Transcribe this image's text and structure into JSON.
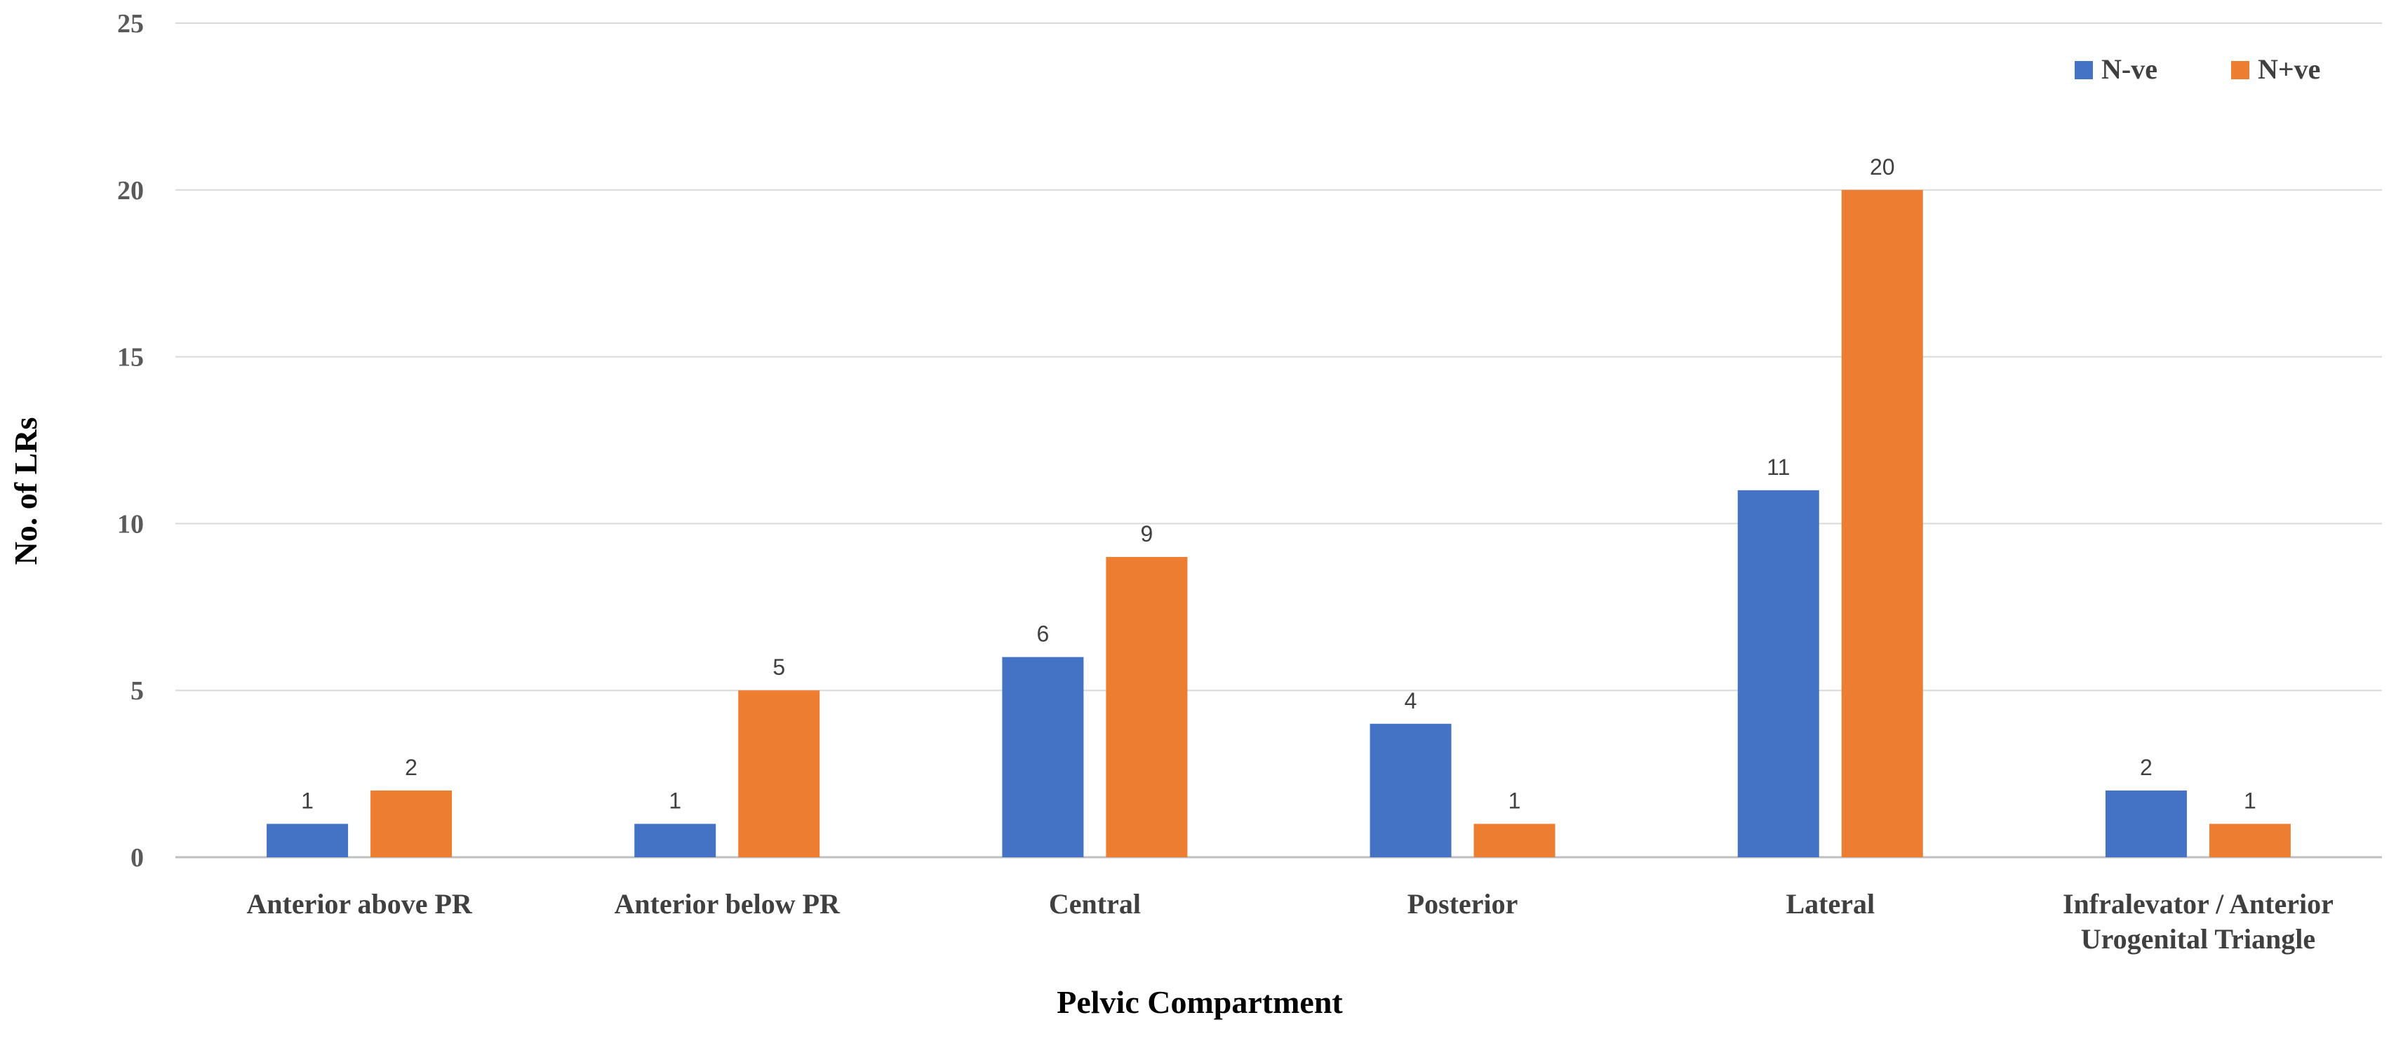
{
  "chart_data": {
    "type": "bar",
    "title": "",
    "xlabel": "Pelvic Compartment",
    "ylabel": "No. of LRs",
    "ylim": [
      0,
      25
    ],
    "yticks": [
      0,
      5,
      10,
      15,
      20,
      25
    ],
    "grid": true,
    "legend_position": "top-right",
    "categories": [
      [
        "Anterior above PR"
      ],
      [
        "Anterior below PR"
      ],
      [
        "Central"
      ],
      [
        "Posterior"
      ],
      [
        "Lateral"
      ],
      [
        "Infralevator / Anterior",
        "Urogenital Triangle"
      ]
    ],
    "series": [
      {
        "name": "N-ve",
        "color": "#4472c4",
        "values": [
          1,
          1,
          6,
          4,
          11,
          2
        ]
      },
      {
        "name": "N+ve",
        "color": "#ed7d31",
        "values": [
          2,
          5,
          9,
          1,
          20,
          1
        ]
      }
    ]
  }
}
